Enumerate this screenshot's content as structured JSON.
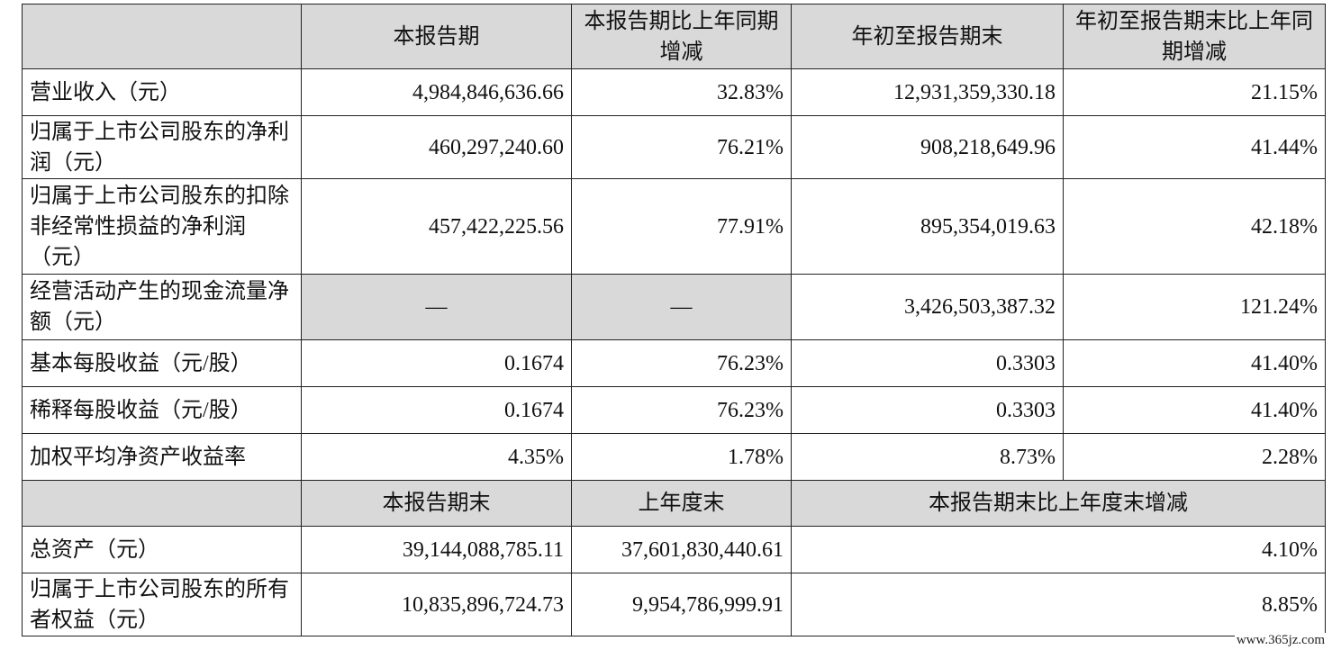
{
  "table": {
    "header": [
      "",
      "本报告期",
      "本报告期比上年同期增减",
      "年初至报告期末",
      "年初至报告期末比上年同期增减"
    ],
    "rows": [
      {
        "label": "营业收入（元）",
        "c1": "4,984,846,636.66",
        "c2": "32.83%",
        "c3": "12,931,359,330.18",
        "c4": "21.15%"
      },
      {
        "label": "归属于上市公司股东的净利润（元）",
        "c1": "460,297,240.60",
        "c2": "76.21%",
        "c3": "908,218,649.96",
        "c4": "41.44%"
      },
      {
        "label": "归属于上市公司股东的扣除非经常性损益的净利润（元）",
        "c1": "457,422,225.56",
        "c2": "77.91%",
        "c3": "895,354,019.63",
        "c4": "42.18%"
      },
      {
        "label": "经营活动产生的现金流量净额（元）",
        "c1": "—",
        "c2": "—",
        "c3": "3,426,503,387.32",
        "c4": "121.24%"
      },
      {
        "label": "基本每股收益（元/股）",
        "c1": "0.1674",
        "c2": "76.23%",
        "c3": "0.3303",
        "c4": "41.40%"
      },
      {
        "label": "稀释每股收益（元/股）",
        "c1": "0.1674",
        "c2": "76.23%",
        "c3": "0.3303",
        "c4": "41.40%"
      },
      {
        "label": "加权平均净资产收益率",
        "c1": "4.35%",
        "c2": "1.78%",
        "c3": "8.73%",
        "c4": "2.28%"
      }
    ],
    "header2": [
      "",
      "本报告期末",
      "上年度末",
      "本报告期末比上年度末增减"
    ],
    "rows2": [
      {
        "label": "总资产（元）",
        "c1": "39,144,088,785.11",
        "c2": "37,601,830,440.61",
        "c3": "4.10%"
      },
      {
        "label": "归属于上市公司股东的所有者权益（元）",
        "c1": "10,835,896,724.73",
        "c2": "9,954,786,999.91",
        "c3": "8.85%"
      }
    ]
  },
  "watermark": "www.365jz.com"
}
